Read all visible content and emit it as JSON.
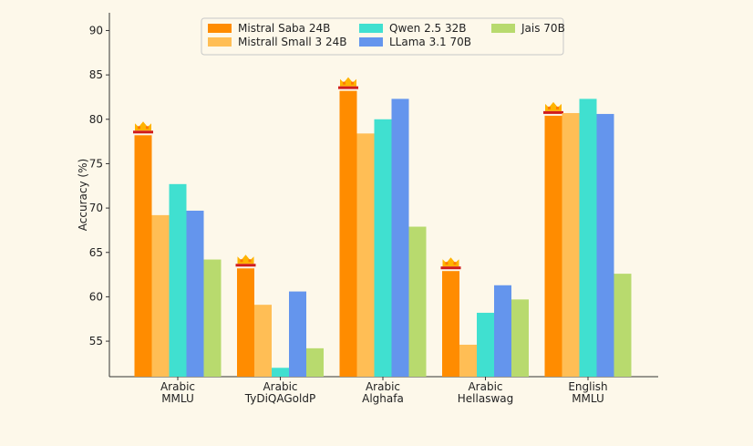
{
  "chart_data": {
    "type": "bar",
    "ylabel": "Accuracy (%)",
    "ylim": [
      51,
      92
    ],
    "yticks": [
      55,
      60,
      65,
      70,
      75,
      80,
      85,
      90
    ],
    "grid": false,
    "legend_position": "top-center",
    "categories": [
      [
        "Arabic",
        "MMLU"
      ],
      [
        "Arabic",
        "TyDiQAGoldP"
      ],
      [
        "Arabic",
        "Alghafa"
      ],
      [
        "Arabic",
        "Hellaswag"
      ],
      [
        "English",
        "MMLU"
      ]
    ],
    "series": [
      {
        "name": "Mistral Saba 24B",
        "color": "#ff8c00",
        "values": [
          78.2,
          63.2,
          83.2,
          62.9,
          80.4
        ]
      },
      {
        "name": "Mistrall Small 3 24B",
        "color": "#ffbe55",
        "values": [
          69.2,
          59.1,
          78.4,
          54.6,
          80.7
        ]
      },
      {
        "name": "Qwen 2.5 32B",
        "color": "#40e0d0",
        "values": [
          72.7,
          52.0,
          80.0,
          58.2,
          82.3
        ]
      },
      {
        "name": "LLama 3.1 70B",
        "color": "#6495ed",
        "values": [
          69.7,
          60.6,
          82.3,
          61.3,
          80.6
        ]
      },
      {
        "name": "Jais 70B",
        "color": "#b8da6e",
        "values": [
          64.2,
          54.2,
          67.9,
          59.7,
          62.6
        ]
      }
    ],
    "highlight_icon": "crown-icon",
    "highlight_series": "Mistral Saba 24B"
  }
}
